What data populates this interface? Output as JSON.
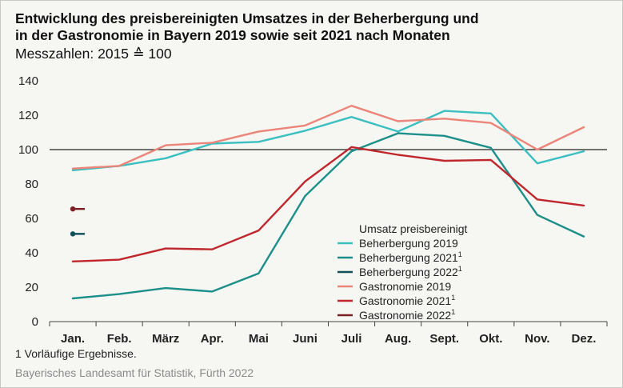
{
  "title_lines": [
    "Entwicklung des preisbereinigten Umsatzes in der Beherbergung und",
    "in der Gastronomie in Bayern 2019 sowie seit 2021 nach Monaten"
  ],
  "subtitle": "Messzahlen: 2015 ≙ 100",
  "footnote": "1  Vorläufige Ergebnisse.",
  "source": "Bayerisches Landesamt für Statistik, Fürth 2022",
  "chart_data": {
    "type": "line",
    "categories": [
      "Jan.",
      "Feb.",
      "März",
      "Apr.",
      "Mai",
      "Juni",
      "Juli",
      "Aug.",
      "Sept.",
      "Okt.",
      "Nov.",
      "Dez."
    ],
    "ylim": [
      0,
      140
    ],
    "yticks": [
      "0",
      "20",
      "40",
      "60",
      "80",
      "100",
      "120",
      "140"
    ],
    "reference_line": 100,
    "grid": false,
    "legend": {
      "title": "Umsatz preisbereinigt",
      "placement": "lower-center"
    },
    "series": [
      {
        "name": "Beherbergung 2019",
        "footnote": "",
        "color": "#3cbfc0",
        "values": [
          88,
          90.5,
          95,
          103.5,
          104.5,
          111,
          119,
          110.5,
          122.5,
          121,
          92,
          99
        ]
      },
      {
        "name": "Beherbergung 2021",
        "footnote": "1",
        "color": "#1d8f8a",
        "values": [
          13.5,
          16,
          19.5,
          17.5,
          28,
          73,
          99,
          109.5,
          108,
          101,
          62,
          49.5
        ]
      },
      {
        "name": "Beherbergung 2022",
        "footnote": "1",
        "color": "#0f4f55",
        "values": [
          51,
          null,
          null,
          null,
          null,
          null,
          null,
          null,
          null,
          null,
          null,
          null
        ]
      },
      {
        "name": "Gastronomie 2019",
        "footnote": "",
        "color": "#ec8579",
        "values": [
          89,
          90.5,
          102.5,
          104,
          110.5,
          114,
          125.5,
          116.5,
          118,
          115.5,
          100,
          113
        ]
      },
      {
        "name": "Gastronomie 2021",
        "footnote": "1",
        "color": "#c0272d",
        "values": [
          35,
          36,
          42.5,
          42,
          53,
          81.5,
          101.5,
          97,
          93.5,
          94,
          71,
          67.5
        ]
      },
      {
        "name": "Gastronomie 2022",
        "footnote": "1",
        "color": "#7a1f22",
        "values": [
          65.5,
          null,
          null,
          null,
          null,
          null,
          null,
          null,
          null,
          null,
          null,
          null
        ]
      }
    ]
  }
}
